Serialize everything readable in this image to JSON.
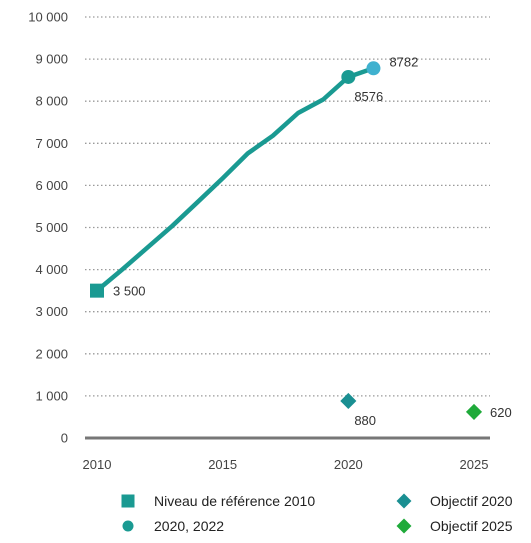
{
  "chart_data": {
    "type": "line",
    "x_ticks": [
      "2010",
      "2015",
      "2020",
      "2025"
    ],
    "y_ticks": [
      "0",
      "1 000",
      "2 000",
      "3 000",
      "4 000",
      "5 000",
      "6 000",
      "7 000",
      "8 000",
      "9 000",
      "10 000"
    ],
    "xlim": [
      2010,
      2025
    ],
    "ylim": [
      0,
      10000
    ],
    "grid": "horizontal-dotted",
    "series": [
      {
        "name": "",
        "kind": "line",
        "color": "#1a9a92",
        "x": [
          2010,
          2011,
          2012,
          2013,
          2014,
          2015,
          2016,
          2017,
          2018,
          2019,
          2020,
          2021
        ],
        "y": [
          3500,
          4000,
          4520,
          5040,
          5600,
          6170,
          6760,
          7180,
          7720,
          8040,
          8576,
          8782
        ]
      }
    ],
    "markers": [
      {
        "legend": "Niveau de référence 2010",
        "shape": "square",
        "color": "#1a9a92",
        "x": 2010,
        "y": 3500,
        "label": "3 500",
        "label_side": "right"
      },
      {
        "legend": "2020, 2022",
        "shape": "circle",
        "color": "#1a9a92",
        "x": 2020,
        "y": 8576,
        "label": "8576",
        "label_side": "below"
      },
      {
        "legend": "2020, 2022",
        "shape": "circle",
        "color": "#3fb1cf",
        "x": 2021,
        "y": 8782,
        "label": "8782",
        "label_side": "right"
      },
      {
        "legend": "Objectif 2020",
        "shape": "diamond",
        "color": "#1a8f92",
        "x": 2020,
        "y": 880,
        "label": "880",
        "label_side": "below"
      },
      {
        "legend": "Objectif 2025",
        "shape": "diamond",
        "color": "#1faa3a",
        "x": 2025,
        "y": 620,
        "label": "620",
        "label_side": "right"
      }
    ],
    "legend": [
      {
        "label": "Niveau de référence 2010",
        "shape": "square",
        "color": "#1a9a92"
      },
      {
        "label": "Objectif 2020",
        "shape": "diamond",
        "color": "#1a8f92"
      },
      {
        "label": "2020, 2022",
        "shape": "circle",
        "color": "#1a9a92"
      },
      {
        "label": "Objectif 2025",
        "shape": "diamond",
        "color": "#1faa3a"
      }
    ],
    "legend_position": "bottom"
  }
}
